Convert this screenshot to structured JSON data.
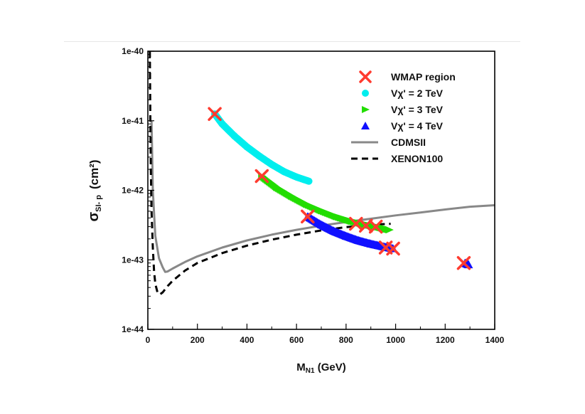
{
  "chart_data": {
    "type": "scatter",
    "title": "",
    "xlabel": "M_N1 (GeV)",
    "xlabel_main": "M",
    "xlabel_sub": "N1",
    "xlabel_unit": " (GeV)",
    "ylabel_main": "σ",
    "ylabel_sub": "SI- p",
    "ylabel_unit": "(cm²)",
    "xlim": [
      0,
      1400
    ],
    "ylim": [
      1e-44,
      1e-40
    ],
    "yscale": "log",
    "x_ticks": [
      0,
      200,
      400,
      600,
      800,
      1000,
      1200,
      1400
    ],
    "x_tick_labels": [
      "0",
      "200",
      "400",
      "600",
      "800",
      "1000",
      "1200",
      "1400"
    ],
    "y_ticks": [
      1e-44,
      1e-43,
      1e-42,
      1e-41,
      1e-40
    ],
    "y_tick_labels": [
      "1e-44",
      "1e-43",
      "1e-42",
      "1e-41",
      "1e-40"
    ],
    "grid": false,
    "legend_position": "top-right",
    "colors": {
      "wmap": "#ff3b2f",
      "v2": "#00eeee",
      "v3": "#22dd00",
      "v4": "#1010ff",
      "cdms": "#888888",
      "xenon": "#000000"
    },
    "series": [
      {
        "name": "Vχ' = 2 TeV",
        "key": "v2",
        "marker": "circle",
        "x": [
          270,
          300,
          350,
          400,
          450,
          500,
          550,
          600,
          650
        ],
        "y": [
          1.25e-41,
          9e-42,
          6e-42,
          4.2e-42,
          3.1e-42,
          2.35e-42,
          1.85e-42,
          1.55e-42,
          1.35e-42
        ]
      },
      {
        "name": "Vχ' = 3 TeV",
        "key": "v3",
        "marker": "triangle-right",
        "x": [
          460,
          520,
          580,
          640,
          700,
          760,
          820,
          880,
          940,
          975
        ],
        "y": [
          1.6e-42,
          1.1e-42,
          8.2e-43,
          6.3e-43,
          5.1e-43,
          4.2e-43,
          3.6e-43,
          3.2e-43,
          2.9e-43,
          2.7e-43
        ]
      },
      {
        "name": "Vχ' = 4 TeV",
        "key": "v4",
        "marker": "triangle-up",
        "x": [
          645,
          700,
          750,
          800,
          850,
          900,
          950,
          990,
          1280,
          1295
        ],
        "y": [
          4.2e-43,
          3.2e-43,
          2.6e-43,
          2.2e-43,
          1.9e-43,
          1.7e-43,
          1.55e-43,
          1.45e-43,
          9e-44,
          8.5e-44
        ]
      },
      {
        "name": "WMAP region",
        "key": "wmap",
        "marker": "x",
        "x": [
          270,
          460,
          645,
          840,
          880,
          920,
          960,
          990,
          1275
        ],
        "y": [
          1.25e-41,
          1.6e-42,
          4.2e-43,
          3.3e-43,
          3.1e-43,
          3e-43,
          1.5e-43,
          1.45e-43,
          9e-44
        ]
      }
    ],
    "curves": [
      {
        "name": "CDMSII",
        "key": "cdms",
        "style": "solid",
        "x": [
          15,
          20,
          30,
          45,
          60,
          70,
          80,
          100,
          150,
          200,
          300,
          400,
          500,
          600,
          700,
          800,
          900,
          1000,
          1100,
          1200,
          1300,
          1400
        ],
        "y": [
          1e-41,
          1e-42,
          2.2e-43,
          1.05e-43,
          7.8e-44,
          6.7e-44,
          6.8e-44,
          7.5e-44,
          9.3e-44,
          1.12e-43,
          1.5e-43,
          1.9e-43,
          2.3e-43,
          2.7e-43,
          3.1e-43,
          3.5e-43,
          3.9e-43,
          4.35e-43,
          4.8e-43,
          5.3e-43,
          5.8e-43,
          6.1e-43
        ]
      },
      {
        "name": "XENON100",
        "key": "xenon",
        "style": "dashed",
        "x": [
          8,
          10,
          12,
          15,
          20,
          25,
          30,
          40,
          50,
          60,
          80,
          100,
          150,
          200,
          300,
          400,
          500,
          600,
          700,
          800,
          900,
          980
        ],
        "y": [
          1e-40,
          1e-41,
          2e-42,
          5e-43,
          1.5e-43,
          7e-44,
          4.5e-44,
          3.3e-44,
          3.2e-44,
          3.4e-44,
          4.2e-44,
          5e-44,
          7e-44,
          9e-44,
          1.25e-43,
          1.6e-43,
          1.95e-43,
          2.3e-43,
          2.65e-43,
          2.95e-43,
          3.2e-43,
          3.3e-43
        ]
      }
    ],
    "legend": [
      "WMAP region",
      "Vχ' = 2 TeV",
      "Vχ' = 3 TeV",
      "Vχ' = 4 TeV",
      "CDMSII",
      "XENON100"
    ]
  }
}
